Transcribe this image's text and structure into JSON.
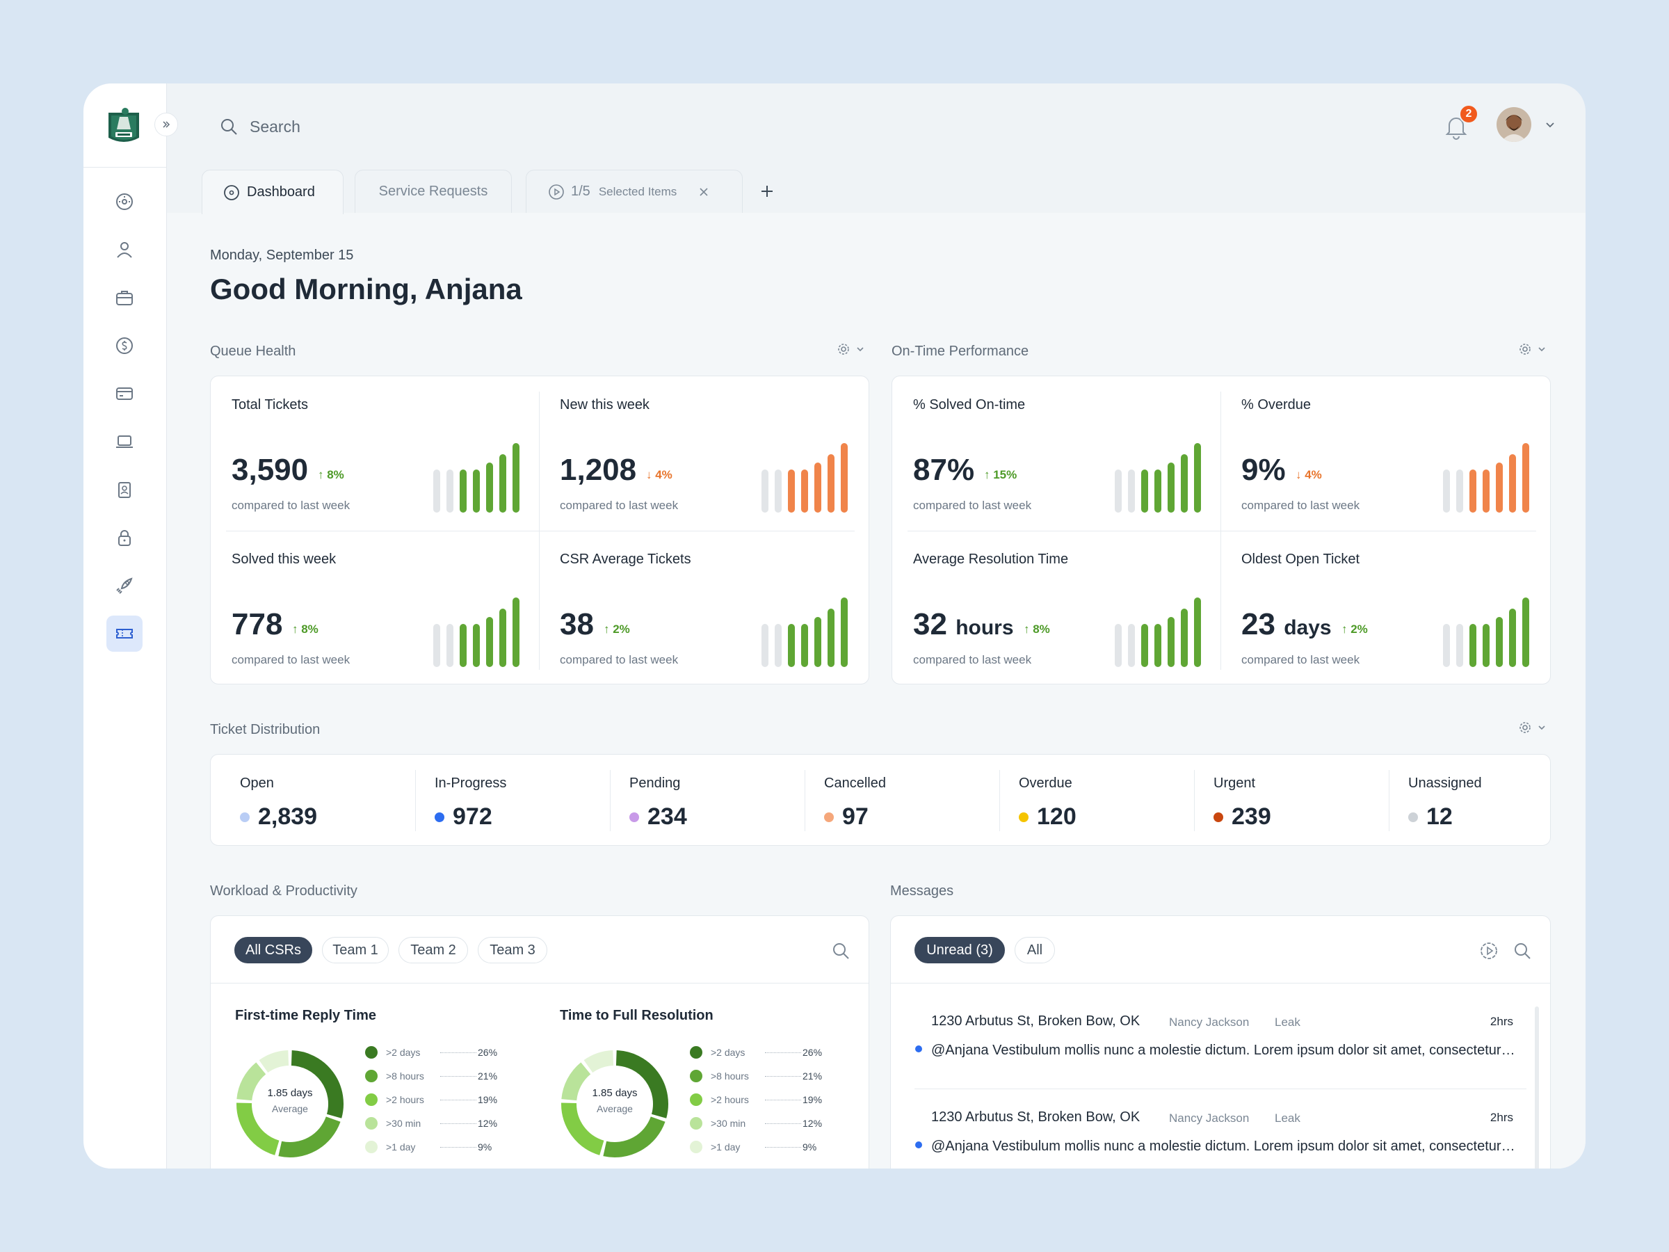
{
  "header": {
    "search_placeholder": "Search",
    "notifications_count": "2"
  },
  "tabs": [
    {
      "label": "Dashboard"
    },
    {
      "label": "Service Requests"
    },
    {
      "counter": "1/5",
      "label": "Selected Items"
    }
  ],
  "greeting": {
    "date": "Monday, September 15",
    "title": "Good Morning, Anjana"
  },
  "queue_health": {
    "title": "Queue Health",
    "metrics": [
      {
        "label": "Total Tickets",
        "value": "3,590",
        "unit": "",
        "change": "↑ 8%",
        "trend": "up",
        "sub": "compared to last week"
      },
      {
        "label": "New this week",
        "value": "1,208",
        "unit": "",
        "change": "↓ 4%",
        "trend": "down",
        "sub": "compared to last week"
      },
      {
        "label": "Solved this week",
        "value": "778",
        "unit": "",
        "change": "↑ 8%",
        "trend": "up",
        "sub": "compared to last week"
      },
      {
        "label": "CSR Average Tickets",
        "value": "38",
        "unit": "",
        "change": "↑ 2%",
        "trend": "up",
        "sub": "compared to last week"
      }
    ]
  },
  "on_time": {
    "title": "On-Time Performance",
    "metrics": [
      {
        "label": "% Solved On-time",
        "value": "87%",
        "unit": "",
        "change": "↑ 15%",
        "trend": "up",
        "sub": "compared to last week"
      },
      {
        "label": "% Overdue",
        "value": "9%",
        "unit": "",
        "change": "↓ 4%",
        "trend": "down",
        "sub": "compared to last week"
      },
      {
        "label": "Average Resolution Time",
        "value": "32",
        "unit": "hours",
        "change": "↑ 8%",
        "trend": "up",
        "sub": "compared to last week"
      },
      {
        "label": "Oldest Open Ticket",
        "value": "23",
        "unit": "days",
        "change": "↑ 2%",
        "trend": "up",
        "sub": "compared to last week"
      }
    ]
  },
  "distribution": {
    "title": "Ticket Distribution",
    "items": [
      {
        "label": "Open",
        "value": "2,839",
        "color": "#b9cdf5"
      },
      {
        "label": "In-Progress",
        "value": "972",
        "color": "#2d6df0"
      },
      {
        "label": "Pending",
        "value": "234",
        "color": "#c89ae8"
      },
      {
        "label": "Cancelled",
        "value": "97",
        "color": "#f5a77b"
      },
      {
        "label": "Overdue",
        "value": "120",
        "color": "#f5c400"
      },
      {
        "label": "Urgent",
        "value": "239",
        "color": "#c9470f"
      },
      {
        "label": "Unassigned",
        "value": "12",
        "color": "#cdd2d7"
      }
    ]
  },
  "workload": {
    "title": "Workload & Productivity",
    "filters": [
      "All CSRs",
      "Team 1",
      "Team 2",
      "Team 3"
    ],
    "charts": [
      {
        "title": "First-time Reply Time",
        "center_value": "1.85 days",
        "center_caption": "Average"
      },
      {
        "title": "Time to Full Resolution",
        "center_value": "1.85 days",
        "center_caption": "Average"
      }
    ],
    "legend": [
      {
        "label": ">2 days",
        "pct": "26%",
        "color": "#3a7a22"
      },
      {
        "label": ">8 hours",
        "pct": "21%",
        "color": "#5fa634"
      },
      {
        "label": ">2 hours",
        "pct": "19%",
        "color": "#82cc45"
      },
      {
        "label": ">30 min",
        "pct": "12%",
        "color": "#b9e39a"
      },
      {
        "label": ">1 day",
        "pct": "9%",
        "color": "#e3f3d6"
      }
    ],
    "donut_shares": [
      26,
      21,
      19,
      12,
      9
    ]
  },
  "messages": {
    "title": "Messages",
    "filters": [
      "Unread (3)",
      "All"
    ],
    "items": [
      {
        "address": "1230 Arbutus St, Broken Bow, OK",
        "name": "Nancy Jackson",
        "tag": "Leak",
        "time": "2hrs",
        "body": "@Anjana Vestibulum mollis nunc a molestie dictum. Lorem ipsum dolor sit amet, consectetur adipiscing elit."
      },
      {
        "address": "1230 Arbutus St, Broken Bow, OK",
        "name": "Nancy Jackson",
        "tag": "Leak",
        "time": "2hrs",
        "body": "@Anjana Vestibulum mollis nunc a molestie dictum. Lorem ipsum dolor sit amet, consectetur adipiscing elit."
      }
    ]
  },
  "colors": {
    "accent_green": "#5fa634",
    "accent_orange": "#f0844a",
    "spark_grey": "#e2e5e8",
    "nav_active": "#dde8fb"
  }
}
